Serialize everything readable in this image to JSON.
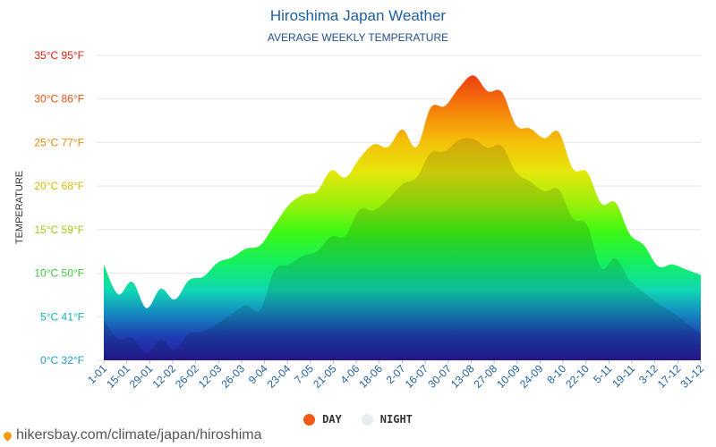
{
  "header": {
    "title": "Hiroshima Japan Weather",
    "subtitle": "AVERAGE WEEKLY TEMPERATURE"
  },
  "legend": {
    "day_label": "DAY",
    "night_label": "NIGHT",
    "day_color": "#f05a14",
    "night_color": "#e6ecf2"
  },
  "watermark": {
    "text": "hikersbay.com/climate/japan/hiroshima"
  },
  "chart_data": {
    "type": "area",
    "title": "Hiroshima Japan Weather",
    "subtitle": "AVERAGE WEEKLY TEMPERATURE",
    "ylabel": "TEMPERATURE",
    "ylim": [
      0,
      35
    ],
    "y_ticks": [
      {
        "value": 0,
        "label": "0°C 32°F",
        "color": "#1ea0c8"
      },
      {
        "value": 5,
        "label": "5°C 41°F",
        "color": "#14b4b4"
      },
      {
        "value": 10,
        "label": "10°C 50°F",
        "color": "#3cc83c"
      },
      {
        "value": 15,
        "label": "15°C 59°F",
        "color": "#9bc814"
      },
      {
        "value": 20,
        "label": "20°C 68°F",
        "color": "#d2be0a"
      },
      {
        "value": 25,
        "label": "25°C 77°F",
        "color": "#e68c0a"
      },
      {
        "value": 30,
        "label": "30°C 86°F",
        "color": "#e6500a"
      },
      {
        "value": 35,
        "label": "35°C 95°F",
        "color": "#e61e0a"
      }
    ],
    "x_labels": [
      "1-01",
      "15-01",
      "29-01",
      "12-02",
      "26-02",
      "12-03",
      "26-03",
      "9-04",
      "23-04",
      "7-05",
      "21-05",
      "4-06",
      "18-06",
      "2-07",
      "16-07",
      "30-07",
      "13-08",
      "27-08",
      "10-09",
      "24-09",
      "8-10",
      "22-10",
      "5-11",
      "19-11",
      "3-12",
      "17-12",
      "31-12"
    ],
    "grid": true,
    "legend_position": "bottom",
    "series": [
      {
        "name": "DAY",
        "values": [
          11,
          7.6,
          9,
          6,
          8.2,
          7,
          9.2,
          9.6,
          11.2,
          11.8,
          12.8,
          13.2,
          15.5,
          17.8,
          19,
          19.4,
          21.8,
          21,
          23.2,
          24.8,
          24.5,
          26.5,
          24.5,
          29,
          29.2,
          31.3,
          32.7,
          30.9,
          30.8,
          27,
          26.6,
          25.5,
          26.2,
          22,
          21.6,
          18,
          18.1,
          14.5,
          13.2,
          10.8,
          11,
          10.4,
          9.8
        ]
      },
      {
        "name": "NIGHT",
        "values": [
          4.6,
          2.5,
          2.6,
          0.8,
          2.4,
          1.2,
          3.1,
          3.3,
          4.2,
          5.3,
          6.3,
          5.8,
          10.3,
          11,
          12,
          12.5,
          14.2,
          14.3,
          17.3,
          17.2,
          18.5,
          20.2,
          21,
          23.8,
          24,
          25.3,
          25.4,
          24.4,
          24.6,
          21.6,
          20.5,
          19.4,
          19.6,
          16.3,
          15.5,
          10.6,
          11.7,
          9.2,
          7.8,
          6.5,
          5.5,
          4.3,
          3
        ]
      }
    ]
  }
}
